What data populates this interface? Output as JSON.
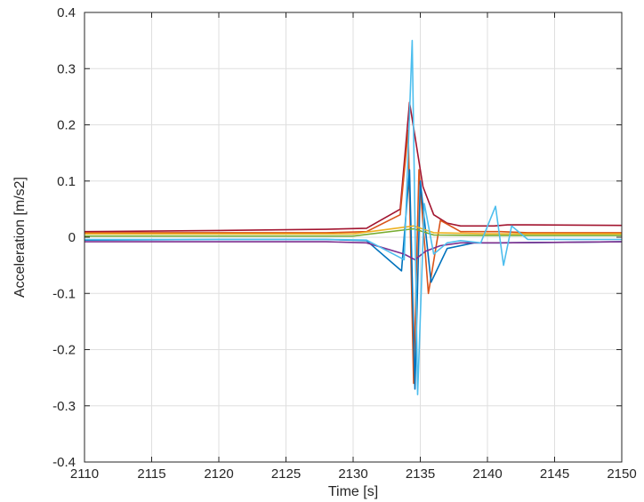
{
  "chart_data": {
    "type": "line",
    "xlabel": "Time [s]",
    "ylabel": "Acceleration [m/s2]",
    "xlim": [
      2110,
      2150
    ],
    "ylim": [
      -0.4,
      0.4
    ],
    "xticks": [
      2110,
      2115,
      2120,
      2125,
      2130,
      2135,
      2140,
      2145,
      2150
    ],
    "yticks": [
      -0.4,
      -0.3,
      -0.2,
      -0.1,
      0,
      0.1,
      0.2,
      0.3,
      0.4
    ],
    "xtick_labels": [
      "2110",
      "2115",
      "2120",
      "2125",
      "2130",
      "2135",
      "2140",
      "2145",
      "2150"
    ],
    "ytick_labels": [
      "-0.4",
      "-0.3",
      "-0.2",
      "-0.1",
      "0",
      "0.1",
      "0.2",
      "0.3",
      "0.4"
    ],
    "grid": true,
    "legend": "none",
    "series": [
      {
        "color": "#A2142F",
        "x": [
          2110,
          2120,
          2128,
          2131,
          2133.5,
          2134.2,
          2134.6,
          2135.2,
          2136,
          2137,
          2138,
          2139,
          2140.5,
          2141.5,
          2143,
          2150
        ],
        "y": [
          0.01,
          0.012,
          0.014,
          0.016,
          0.05,
          0.24,
          0.18,
          0.09,
          0.04,
          0.025,
          0.02,
          0.02,
          0.02,
          0.022,
          0.022,
          0.021
        ]
      },
      {
        "color": "#D95319",
        "x": [
          2110,
          2120,
          2128,
          2131,
          2133.5,
          2134.1,
          2134.5,
          2134.9,
          2135.6,
          2136.5,
          2138,
          2140,
          2141,
          2143,
          2150
        ],
        "y": [
          0.008,
          0.008,
          0.008,
          0.01,
          0.04,
          0.19,
          -0.26,
          0.12,
          -0.1,
          0.03,
          0.01,
          0.01,
          0.01,
          0.008,
          0.008
        ]
      },
      {
        "color": "#0072BD",
        "x": [
          2110,
          2120,
          2128,
          2131,
          2133.6,
          2134.2,
          2134.6,
          2135.0,
          2135.8,
          2137,
          2139,
          2141,
          2150
        ],
        "y": [
          -0.005,
          -0.004,
          -0.004,
          -0.006,
          -0.06,
          0.12,
          -0.27,
          0.1,
          -0.08,
          -0.02,
          -0.01,
          -0.01,
          -0.008
        ]
      },
      {
        "color": "#7E2F8E",
        "x": [
          2110,
          2120,
          2128,
          2131,
          2133.8,
          2134.6,
          2135.4,
          2136.5,
          2138,
          2141,
          2150
        ],
        "y": [
          -0.008,
          -0.008,
          -0.008,
          -0.01,
          -0.03,
          -0.04,
          -0.025,
          -0.015,
          -0.01,
          -0.01,
          -0.008
        ]
      },
      {
        "color": "#77AC30",
        "x": [
          2110,
          2120,
          2130,
          2134.5,
          2136,
          2140,
          2150
        ],
        "y": [
          0.002,
          0.002,
          0.002,
          0.015,
          0.004,
          0.003,
          0.003
        ]
      },
      {
        "color": "#EDB120",
        "x": [
          2110,
          2120,
          2130,
          2134.5,
          2136,
          2140,
          2150
        ],
        "y": [
          0.006,
          0.006,
          0.006,
          0.02,
          0.008,
          0.006,
          0.006
        ]
      },
      {
        "color": "#4DBEEE",
        "x": [
          2110,
          2120,
          2128,
          2131,
          2133.8,
          2134.4,
          2134.8,
          2135.3,
          2136,
          2137,
          2138,
          2139.5,
          2140.6,
          2141.2,
          2141.8,
          2143,
          2150
        ],
        "y": [
          -0.004,
          -0.004,
          -0.004,
          -0.005,
          -0.04,
          0.35,
          -0.28,
          0.06,
          -0.03,
          -0.01,
          -0.006,
          -0.01,
          0.055,
          -0.05,
          0.02,
          -0.004,
          -0.004
        ]
      }
    ]
  }
}
